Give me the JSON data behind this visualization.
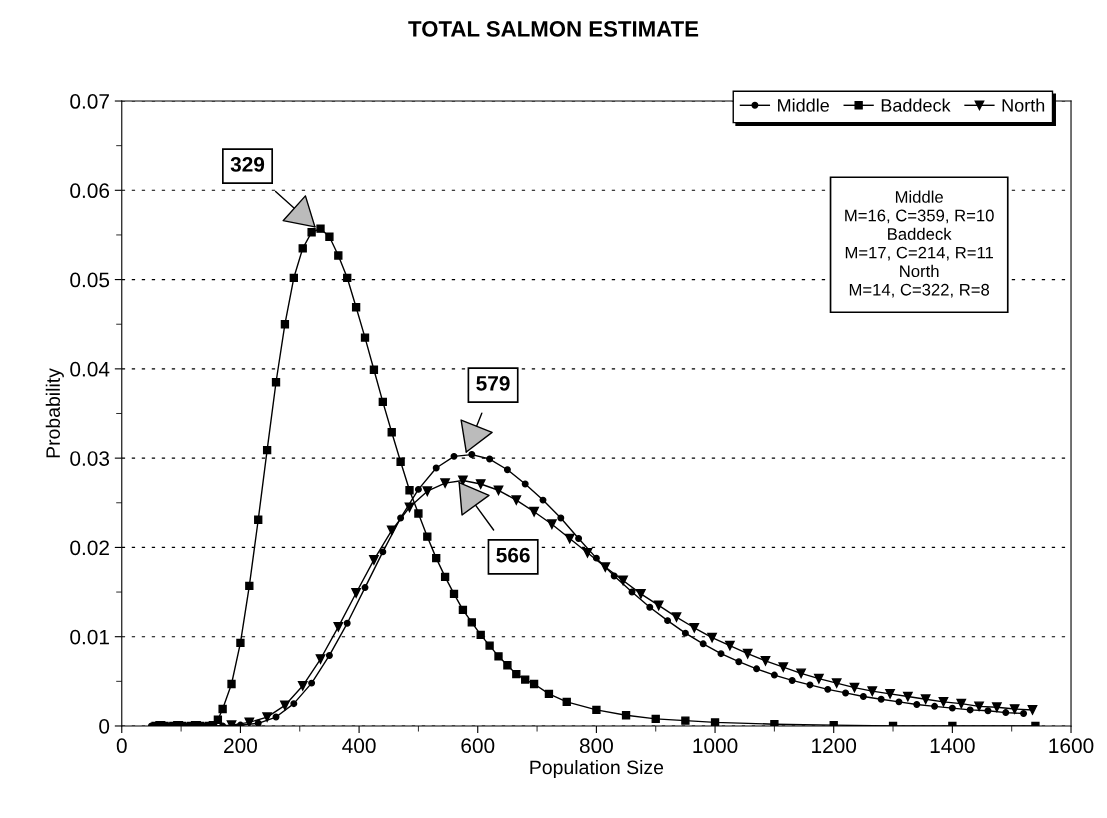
{
  "chart_data": {
    "type": "line",
    "title": "TOTAL SALMON ESTIMATE",
    "xlabel": "Population Size",
    "ylabel": "Probability",
    "xlim": [
      0,
      1600
    ],
    "xticks": [
      0,
      200,
      400,
      600,
      800,
      1000,
      1200,
      1400,
      1600
    ],
    "ylim": [
      0,
      0.07
    ],
    "yticks": [
      0,
      0.01,
      0.02,
      0.03,
      0.04,
      0.05,
      0.06,
      0.07
    ],
    "grid": "y",
    "legend": "top right",
    "series": [
      {
        "name": "Middle",
        "color": "#000000",
        "marker": "circle",
        "x": [
          50,
          80,
          110,
          140,
          170,
          200,
          230,
          260,
          290,
          320,
          350,
          380,
          410,
          440,
          470,
          500,
          530,
          560,
          590,
          620,
          650,
          680,
          710,
          740,
          770,
          800,
          830,
          860,
          890,
          920,
          950,
          980,
          1010,
          1040,
          1070,
          1100,
          1130,
          1160,
          1190,
          1220,
          1250,
          1280,
          1310,
          1340,
          1370,
          1400,
          1430,
          1460,
          1490,
          1520
        ],
        "values": [
          0,
          0,
          0,
          0,
          0,
          0.0001,
          0.0003,
          0.001,
          0.0025,
          0.0048,
          0.0079,
          0.0115,
          0.0155,
          0.0195,
          0.0233,
          0.0265,
          0.0289,
          0.0302,
          0.0304,
          0.0299,
          0.0287,
          0.0271,
          0.0253,
          0.0233,
          0.021,
          0.0188,
          0.0168,
          0.015,
          0.0133,
          0.0118,
          0.0104,
          0.0092,
          0.0081,
          0.0072,
          0.0064,
          0.0057,
          0.0051,
          0.0046,
          0.0041,
          0.0037,
          0.0033,
          0.003,
          0.0027,
          0.0024,
          0.0022,
          0.002,
          0.0018,
          0.0017,
          0.0015,
          0.0014
        ]
      },
      {
        "name": "Baddeck",
        "color": "#000000",
        "marker": "square",
        "x": [
          57,
          72,
          87,
          102,
          117,
          132,
          147,
          162,
          170,
          185,
          200,
          215,
          230,
          245,
          260,
          275,
          290,
          305,
          320,
          335,
          350,
          365,
          380,
          395,
          410,
          425,
          440,
          455,
          470,
          485,
          500,
          515,
          530,
          545,
          560,
          575,
          590,
          605,
          620,
          635,
          650,
          665,
          680,
          695,
          720,
          750,
          800,
          850,
          900,
          950,
          1000,
          1100,
          1200,
          1300,
          1400,
          1540
        ],
        "values": [
          0,
          0,
          0,
          0,
          0,
          0,
          0,
          0.0007,
          0.0019,
          0.0047,
          0.0093,
          0.0157,
          0.0231,
          0.0309,
          0.0385,
          0.045,
          0.0502,
          0.0535,
          0.0553,
          0.0557,
          0.0548,
          0.0527,
          0.0502,
          0.0469,
          0.0435,
          0.0399,
          0.0363,
          0.0329,
          0.0296,
          0.0264,
          0.0238,
          0.0212,
          0.0188,
          0.0167,
          0.0148,
          0.013,
          0.0116,
          0.0102,
          0.009,
          0.0078,
          0.0068,
          0.0058,
          0.0052,
          0.0047,
          0.0036,
          0.0027,
          0.0018,
          0.0012,
          0.0008,
          0.0006,
          0.0004,
          0.0002,
          0.0001,
          0,
          0,
          0
        ]
      },
      {
        "name": "North",
        "color": "#000000",
        "marker": "triangle",
        "x": [
          65,
          95,
          125,
          155,
          185,
          215,
          245,
          275,
          305,
          335,
          365,
          395,
          425,
          455,
          485,
          515,
          545,
          575,
          605,
          635,
          665,
          695,
          725,
          755,
          785,
          815,
          845,
          875,
          905,
          935,
          965,
          995,
          1025,
          1055,
          1085,
          1115,
          1145,
          1175,
          1205,
          1235,
          1265,
          1295,
          1325,
          1355,
          1385,
          1415,
          1445,
          1475,
          1505,
          1535
        ],
        "values": [
          0,
          0,
          0,
          0,
          0.0001,
          0.0004,
          0.001,
          0.0023,
          0.0045,
          0.0075,
          0.0111,
          0.0149,
          0.0186,
          0.0219,
          0.0245,
          0.0263,
          0.0272,
          0.0275,
          0.0271,
          0.0264,
          0.0253,
          0.024,
          0.0226,
          0.021,
          0.0194,
          0.0178,
          0.0163,
          0.0148,
          0.0135,
          0.0122,
          0.011,
          0.0099,
          0.009,
          0.0081,
          0.0073,
          0.0066,
          0.0059,
          0.0053,
          0.0048,
          0.0043,
          0.0039,
          0.0036,
          0.0033,
          0.003,
          0.0027,
          0.0025,
          0.0022,
          0.0021,
          0.0019,
          0.0018
        ]
      }
    ],
    "annotations": [
      {
        "text": "329",
        "x": 329,
        "y": 0.0557
      },
      {
        "text": "579",
        "x": 579,
        "y": 0.0304
      },
      {
        "text": "566",
        "x": 566,
        "y": 0.0275
      },
      "Middle\nM=16, C=359, R=10\nBaddeck\nM=17, C=214, R=11\nNorth\nM=14, C=322, R=8"
    ]
  }
}
